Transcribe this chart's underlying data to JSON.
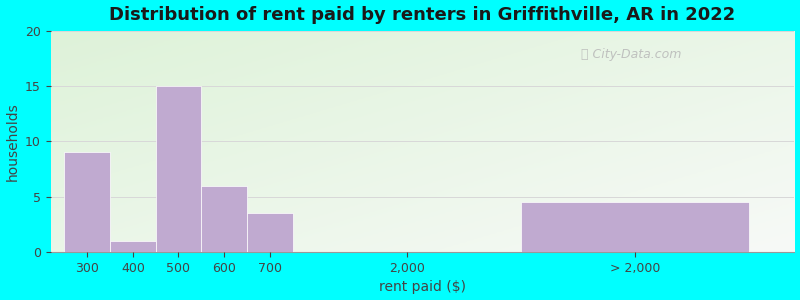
{
  "title": "Distribution of rent paid by renters in Griffithville, AR in 2022",
  "xlabel": "rent paid ($)",
  "ylabel": "households",
  "background_outer": "#00FFFF",
  "bar_color": "#c0aad0",
  "bar_edge_color": "#ffffff",
  "ylim": [
    0,
    20
  ],
  "yticks": [
    0,
    5,
    10,
    15,
    20
  ],
  "values": [
    9,
    1,
    15,
    6,
    3.5,
    4.5
  ],
  "xtick_labels": [
    "300",
    "400",
    "500",
    "600",
    "700",
    "2,000",
    "> 2,000"
  ],
  "title_fontsize": 13,
  "axis_label_fontsize": 10,
  "tick_fontsize": 9,
  "watermark_text": "City-Data.com",
  "grid_color": "#d8d8d8",
  "bg_gradient_top": "#e8f5e0",
  "bg_gradient_bottom": "#f5f5ee"
}
